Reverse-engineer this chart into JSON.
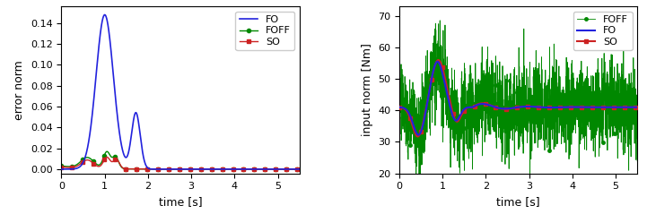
{
  "left": {
    "ylabel": "error norm",
    "xlabel": "time [s]",
    "xlim": [
      0,
      5.5
    ],
    "ylim": [
      -0.004,
      0.156
    ],
    "yticks": [
      0.0,
      0.02,
      0.04,
      0.06,
      0.08,
      0.1,
      0.12,
      0.14
    ],
    "xticks": [
      0,
      1,
      2,
      3,
      4,
      5
    ],
    "fo_color": "#2222dd",
    "foff_color": "#008800",
    "so_color": "#cc2222"
  },
  "right": {
    "ylabel": "input norm [Nm]",
    "xlabel": "time [s]",
    "xlim": [
      0,
      5.5
    ],
    "ylim": [
      20,
      73
    ],
    "yticks": [
      20,
      30,
      40,
      50,
      60,
      70
    ],
    "xticks": [
      0,
      1,
      2,
      3,
      4,
      5
    ],
    "fo_color": "#2222dd",
    "foff_color": "#008800",
    "so_color": "#cc2222"
  },
  "legend_labels": [
    "FO",
    "FOFF",
    "SO"
  ]
}
